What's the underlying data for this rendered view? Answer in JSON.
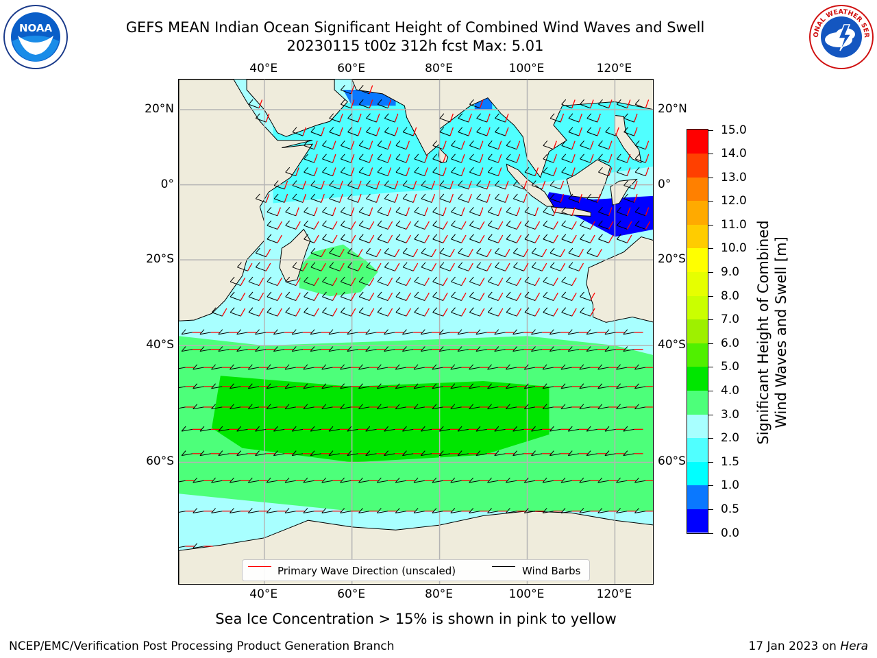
{
  "title": {
    "line1": "GEFS MEAN Indian Ocean Significant Height of Combined Wind Waves and Swell",
    "line2": "20230115 t00z 312h fcst   Max: 5.01"
  },
  "logos": {
    "left": {
      "text": "NOAA",
      "icon": "noaa-logo"
    },
    "right": {
      "text": "NATIONAL WEATHER SERVICE",
      "icon": "nws-logo"
    }
  },
  "map": {
    "lon_ticks": [
      "40°E",
      "60°E",
      "80°E",
      "100°E",
      "120°E"
    ],
    "lon_values": [
      40,
      60,
      80,
      100,
      120
    ],
    "lat_ticks": [
      "20°N",
      "0°",
      "20°S",
      "40°S",
      "60°S"
    ],
    "lat_values": [
      20,
      0,
      -20,
      -40,
      -60
    ],
    "lon_range": [
      20.5,
      129
    ],
    "lat_range": [
      -73,
      27.5
    ],
    "colors": {
      "land": "#efecdc",
      "grid": "#b4b4b4",
      "wave_direction": "#ff0000",
      "wind_barbs": "#000000"
    }
  },
  "legend": {
    "wave_direction": "Primary Wave Direction (unscaled)",
    "wind_barbs": "Wind Barbs"
  },
  "colorbar": {
    "title_line1": "Significant Height of Combined",
    "title_line2": "Wind Waves and Swell [m]",
    "bounds": [
      0.0,
      0.5,
      1.0,
      1.5,
      2.0,
      3.0,
      4.0,
      5.0,
      6.0,
      7.0,
      8.0,
      9.0,
      10.0,
      11.0,
      12.0,
      13.0,
      14.0,
      15.0
    ],
    "labels": [
      "0.0",
      "0.5",
      "1.0",
      "1.5",
      "2.0",
      "3.0",
      "4.0",
      "5.0",
      "6.0",
      "7.0",
      "8.0",
      "9.0",
      "10.0",
      "11.0",
      "12.0",
      "13.0",
      "14.0",
      "15.0"
    ],
    "colors": [
      "#0000ff",
      "#0a78ff",
      "#00ffff",
      "#50ffff",
      "#a8ffff",
      "#4dff7a",
      "#00e600",
      "#50f000",
      "#9ef000",
      "#caff00",
      "#e6ff00",
      "#ffff00",
      "#ffcc00",
      "#ffaa00",
      "#ff8000",
      "#ff4000",
      "#ff0000"
    ]
  },
  "ice_note": "Sea Ice Concentration > 15% is shown in pink to yellow",
  "footer": {
    "left": "NCEP/EMC/Verification Post Processing Product Generation Branch",
    "right_prefix": "17 Jan 2023 on ",
    "right_machine": "Hera"
  }
}
